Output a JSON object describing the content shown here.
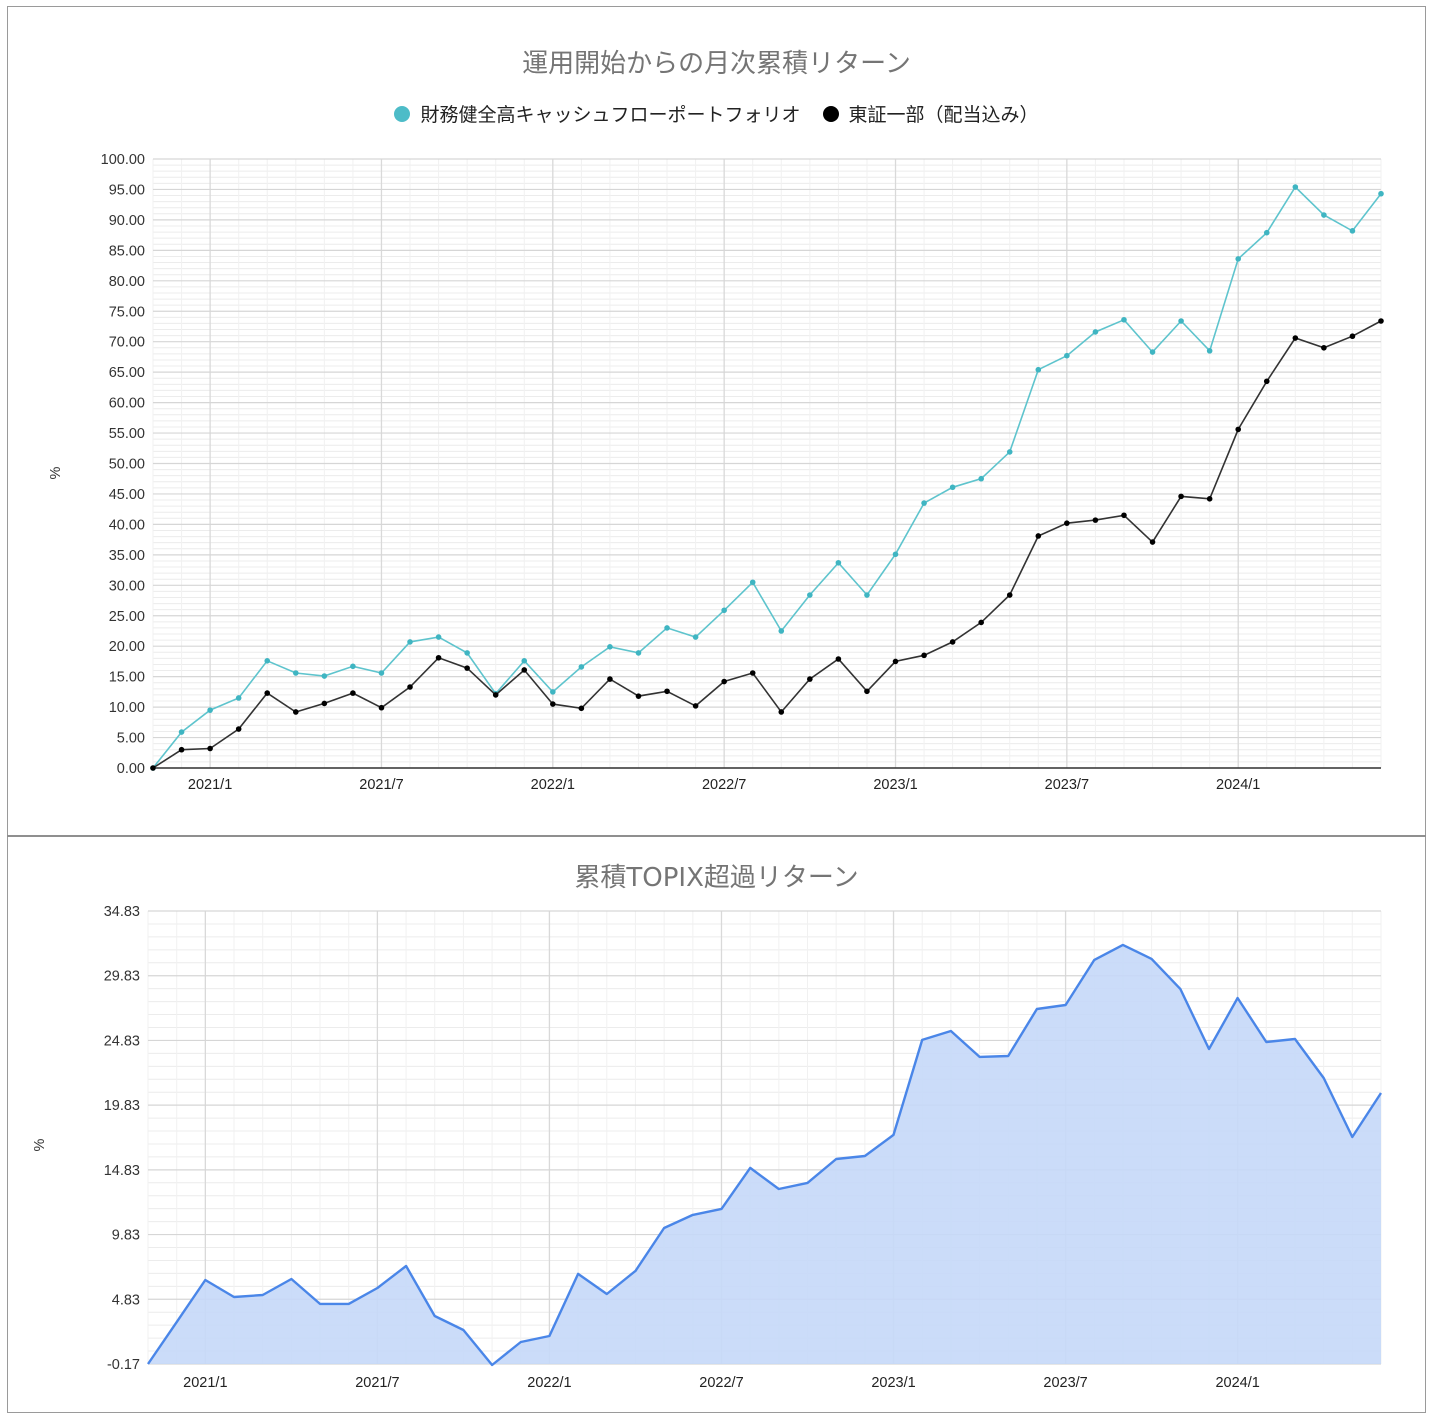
{
  "top_chart": {
    "title": "運用開始からの月次累積リターン",
    "ylabel": "%",
    "legend": [
      {
        "label": "財務健全高キャッシュフローポートフォリオ",
        "color": "#4dbcc8"
      },
      {
        "label": "東証一部（配当込み）",
        "color": "#000000"
      }
    ],
    "y_ticks": [
      "0.00",
      "5.00",
      "10.00",
      "15.00",
      "20.00",
      "25.00",
      "30.00",
      "35.00",
      "40.00",
      "45.00",
      "50.00",
      "55.00",
      "60.00",
      "65.00",
      "70.00",
      "75.00",
      "80.00",
      "85.00",
      "90.00",
      "95.00",
      "100.00"
    ],
    "x_ticks": [
      "2021/1",
      "2021/7",
      "2022/1",
      "2022/7",
      "2023/1",
      "2023/7",
      "2024/1"
    ]
  },
  "bottom_chart": {
    "title": "累積TOPIX超過リターン",
    "ylabel": "%",
    "y_ticks": [
      "-0.17",
      "4.83",
      "9.83",
      "14.83",
      "19.83",
      "24.83",
      "29.83",
      "34.83"
    ],
    "x_ticks": [
      "2021/1",
      "2021/7",
      "2022/1",
      "2022/7",
      "2023/1",
      "2023/7",
      "2024/1"
    ],
    "line_color": "#4a86e8",
    "fill_color": "#c5d8f8"
  },
  "chart_data": [
    {
      "type": "line",
      "title": "運用開始からの月次累積リターン",
      "xlabel": "",
      "ylabel": "%",
      "ylim": [
        0,
        100
      ],
      "grid": true,
      "legend_position": "top",
      "x": [
        "2020/11",
        "2020/12",
        "2021/1",
        "2021/2",
        "2021/3",
        "2021/4",
        "2021/5",
        "2021/6",
        "2021/7",
        "2021/8",
        "2021/9",
        "2021/10",
        "2021/11",
        "2021/12",
        "2022/1",
        "2022/2",
        "2022/3",
        "2022/4",
        "2022/5",
        "2022/6",
        "2022/7",
        "2022/8",
        "2022/9",
        "2022/10",
        "2022/11",
        "2022/12",
        "2023/1",
        "2023/2",
        "2023/3",
        "2023/4",
        "2023/5",
        "2023/6",
        "2023/7",
        "2023/8",
        "2023/9",
        "2023/10",
        "2023/11",
        "2023/12",
        "2024/1",
        "2024/2",
        "2024/3",
        "2024/4",
        "2024/5",
        "2024/6"
      ],
      "series": [
        {
          "name": "財務健全高キャッシュフローポートフォリオ",
          "color": "#4dbcc8",
          "values": [
            0,
            5.9,
            9.5,
            11.5,
            17.6,
            15.6,
            15.1,
            16.7,
            15.6,
            20.7,
            21.5,
            18.9,
            12.2,
            17.6,
            12.5,
            16.6,
            19.9,
            18.9,
            23.0,
            21.5,
            25.9,
            30.5,
            22.5,
            28.4,
            33.7,
            28.4,
            35.1,
            43.5,
            46.1,
            47.5,
            51.9,
            65.4,
            67.7,
            71.6,
            73.6,
            68.3,
            73.4,
            68.5,
            83.6,
            87.9,
            95.4,
            90.8,
            88.2,
            94.3
          ]
        },
        {
          "name": "東証一部（配当込み）",
          "color": "#000000",
          "values": [
            0,
            3.0,
            3.2,
            6.4,
            12.3,
            9.2,
            10.6,
            12.3,
            9.9,
            13.3,
            18.1,
            16.4,
            12.0,
            16.1,
            10.5,
            9.8,
            14.6,
            11.8,
            12.6,
            10.2,
            14.2,
            15.6,
            9.2,
            14.6,
            17.9,
            12.6,
            17.5,
            18.5,
            20.7,
            23.9,
            28.4,
            38.1,
            40.2,
            40.7,
            41.5,
            37.1,
            44.6,
            44.2,
            55.6,
            63.5,
            70.6,
            69.0,
            70.9,
            73.4
          ]
        }
      ]
    },
    {
      "type": "area",
      "title": "累積TOPIX超過リターン",
      "xlabel": "",
      "ylabel": "%",
      "ylim": [
        -0.17,
        34.83
      ],
      "grid": true,
      "x": [
        "2020/11",
        "2020/12",
        "2021/1",
        "2021/2",
        "2021/3",
        "2021/4",
        "2021/5",
        "2021/6",
        "2021/7",
        "2021/8",
        "2021/9",
        "2021/10",
        "2021/11",
        "2021/12",
        "2022/1",
        "2022/2",
        "2022/3",
        "2022/4",
        "2022/5",
        "2022/6",
        "2022/7",
        "2022/8",
        "2022/9",
        "2022/10",
        "2022/11",
        "2022/12",
        "2023/1",
        "2023/2",
        "2023/3",
        "2023/4",
        "2023/5",
        "2023/6",
        "2023/7",
        "2023/8",
        "2023/9",
        "2023/10",
        "2023/11",
        "2023/12",
        "2024/1",
        "2024/2",
        "2024/3",
        "2024/4",
        "2024/5",
        "2024/6"
      ],
      "series": [
        {
          "name": "累積TOPIX超過リターン",
          "color": "#4a86e8",
          "values": [
            -0.17,
            3.07,
            6.32,
            5.01,
            5.16,
            6.4,
            4.47,
            4.47,
            5.7,
            7.4,
            3.54,
            2.46,
            -0.25,
            1.53,
            1.99,
            6.79,
            5.24,
            7.02,
            10.34,
            11.35,
            11.81,
            14.98,
            13.35,
            13.82,
            15.67,
            15.9,
            17.53,
            24.87,
            25.56,
            23.56,
            23.63,
            27.26,
            27.57,
            31.05,
            32.21,
            31.13,
            28.81,
            24.17,
            28.11,
            24.71,
            24.94,
            21.93,
            17.37,
            20.77
          ]
        }
      ]
    }
  ]
}
